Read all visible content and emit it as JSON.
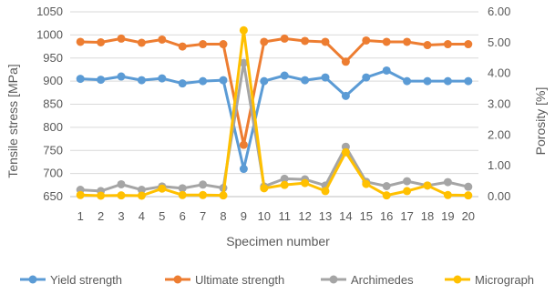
{
  "chart_data": {
    "type": "line",
    "title": "",
    "xlabel": "Specimen number",
    "ylabel_left": "Tensile stress [MPa]",
    "ylabel_right": "Porosity [%]",
    "x": [
      1,
      2,
      3,
      4,
      5,
      6,
      7,
      8,
      9,
      10,
      11,
      12,
      13,
      14,
      15,
      16,
      17,
      18,
      19,
      20
    ],
    "ylim_left": [
      650,
      1050
    ],
    "yticks_left": [
      650,
      700,
      750,
      800,
      850,
      900,
      950,
      1000,
      1050
    ],
    "ylim_right": [
      0,
      6
    ],
    "yticks_right": [
      "0.00",
      "1.00",
      "2.00",
      "3.00",
      "4.00",
      "5.00",
      "6.00"
    ],
    "grid": "horizontal",
    "legend_position": "bottom",
    "series": [
      {
        "name": "Yield strength",
        "axis": "left",
        "color": "#5B9BD5",
        "values": [
          905,
          903,
          910,
          902,
          906,
          895,
          900,
          902,
          710,
          900,
          912,
          902,
          908,
          868,
          908,
          923,
          900,
          900,
          900,
          900
        ]
      },
      {
        "name": "Ultimate strength",
        "axis": "left",
        "color": "#ED7D31",
        "values": [
          985,
          984,
          992,
          983,
          990,
          975,
          980,
          980,
          762,
          985,
          992,
          987,
          985,
          942,
          988,
          985,
          985,
          978,
          980,
          980
        ]
      },
      {
        "name": "Archimedes",
        "axis": "right",
        "color": "#A5A5A5",
        "values": [
          0.22,
          0.18,
          0.4,
          0.22,
          0.33,
          0.27,
          0.39,
          0.28,
          4.34,
          0.33,
          0.58,
          0.56,
          0.36,
          1.62,
          0.48,
          0.34,
          0.5,
          0.36,
          0.47,
          0.32
        ]
      },
      {
        "name": "Micrograph",
        "axis": "right",
        "color": "#FFC000",
        "values": [
          0.05,
          0.03,
          0.04,
          0.03,
          0.26,
          0.05,
          0.05,
          0.04,
          5.4,
          0.27,
          0.38,
          0.44,
          0.18,
          1.44,
          0.41,
          0.04,
          0.18,
          0.36,
          0.05,
          0.04
        ]
      }
    ]
  }
}
